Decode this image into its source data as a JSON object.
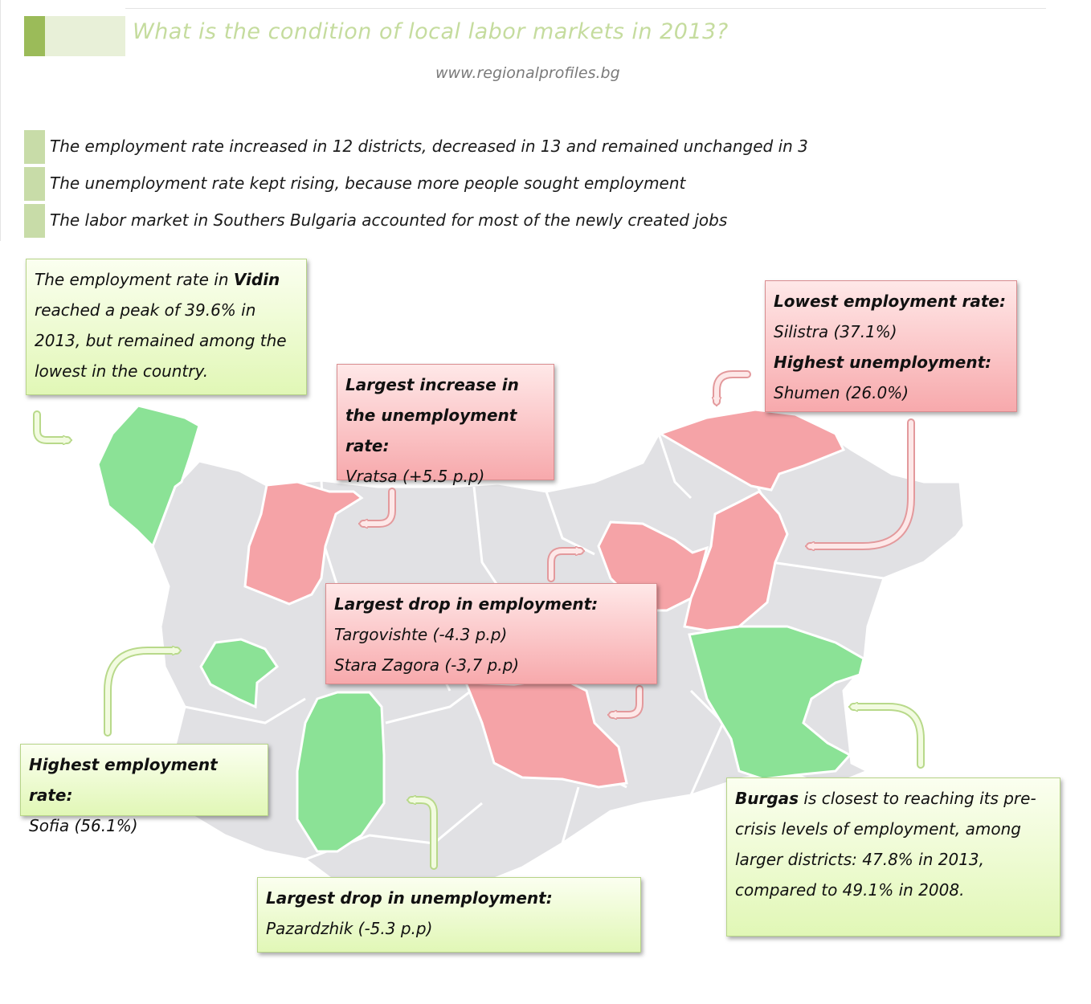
{
  "header": {
    "title": "What is the condition of local labor markets in 2013?",
    "website": "www.regionalprofiles.bg"
  },
  "bullets": [
    "The employment rate increased in 12 districts, decreased in 13 and remained unchanged in 3",
    "The unemployment rate kept rising, because more people sought employment",
    "The labor market in Southers Bulgaria accounted for most of the newly created jobs"
  ],
  "callouts": {
    "vidin": {
      "pre": "The employment rate in ",
      "bold": "Vidin",
      "post": " reached a peak of 39.6% in 2013, but remained among the lowest in the country."
    },
    "vratsa": {
      "heading": "Largest increase in the unemployment rate:",
      "line1": "Vratsa (+5.5 p.p)"
    },
    "silistra_shumen": {
      "heading1": "Lowest employment rate:",
      "line1": "Silistra (37.1%)",
      "heading2": "Highest unemployment:",
      "line2": "Shumen (26.0%)"
    },
    "targovishte": {
      "heading": "Largest drop in employment:",
      "line1": "Targovishte (-4.3 p.p)",
      "line2": "Stara Zagora (-3,7 p.p)"
    },
    "sofia": {
      "heading": "Highest employment rate:",
      "line1": "Sofia (56.1%)"
    },
    "pazardzhik": {
      "heading": "Largest drop in unemployment:",
      "line1": "Pazardzhik (-5.3 p.p)"
    },
    "burgas": {
      "bold": "Burgas",
      "post": " is closest to reaching its pre-crisis levels of employment, among larger districts: 47.8% in 2013, compared to 49.1% in 2008."
    }
  },
  "colors": {
    "neutral_region": "#e1e1e4",
    "positive_region": "#8be296",
    "negative_region": "#f5a3a7",
    "title": "#c5dc9e",
    "accent": "#9bbb59"
  }
}
